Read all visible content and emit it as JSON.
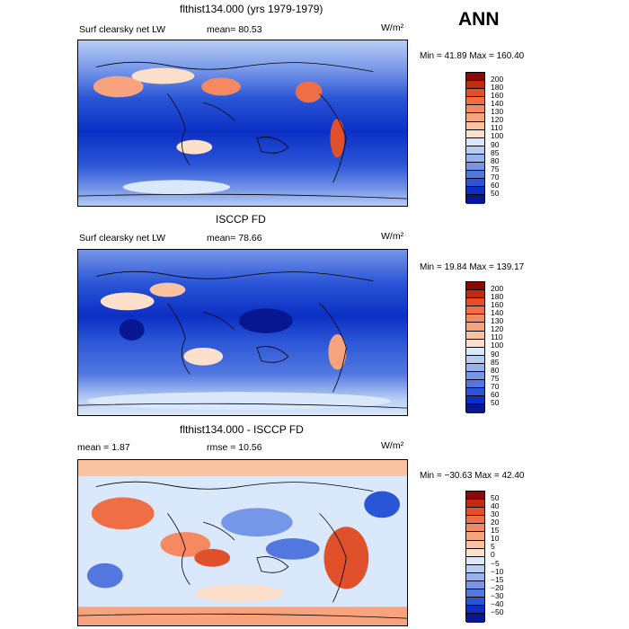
{
  "header": {
    "season": "ANN"
  },
  "panels": [
    {
      "title": "flthist134.000 (yrs 1979-1979)",
      "left_label": "Surf clearsky net LW",
      "mid_label": "mean=  80.53",
      "units": "W/m²",
      "minmax": "Min =  41.89 Max = 160.40",
      "colorbar_labels": [
        "200",
        "180",
        "160",
        "140",
        "130",
        "120",
        "110",
        "100",
        "90",
        "85",
        "80",
        "75",
        "70",
        "60",
        "50"
      ],
      "colorbar_colors": [
        "#8b0a05",
        "#c42a10",
        "#e0502a",
        "#f06e45",
        "#f58a62",
        "#f7a47e",
        "#fac29f",
        "#fde0cc",
        "#d9e8fb",
        "#b6cdf4",
        "#97b3ef",
        "#7696e8",
        "#5278e0",
        "#2a55d6",
        "#0b2fc4",
        "#061790"
      ]
    },
    {
      "title": "ISCCP FD",
      "left_label": "Surf clearsky net LW",
      "mid_label": "mean=  78.66",
      "units": "W/m²",
      "minmax": "Min =  19.84 Max = 139.17",
      "colorbar_labels": [
        "200",
        "180",
        "160",
        "140",
        "130",
        "120",
        "110",
        "100",
        "90",
        "85",
        "80",
        "75",
        "70",
        "60",
        "50"
      ],
      "colorbar_colors": [
        "#8b0a05",
        "#c42a10",
        "#e0502a",
        "#f06e45",
        "#f58a62",
        "#f7a47e",
        "#fac29f",
        "#fde0cc",
        "#d9e8fb",
        "#b6cdf4",
        "#97b3ef",
        "#7696e8",
        "#5278e0",
        "#2a55d6",
        "#0b2fc4",
        "#061790"
      ]
    },
    {
      "title": "flthist134.000 - ISCCP FD",
      "left_label": "mean =    1.87",
      "mid_label": "rmse =   10.56",
      "units": "W/m²",
      "minmax": "Min = −30.63 Max =  42.40",
      "colorbar_labels": [
        "50",
        "40",
        "30",
        "20",
        "15",
        "10",
        "5",
        "0",
        "−5",
        "−10",
        "−15",
        "−20",
        "−30",
        "−40",
        "−50"
      ],
      "colorbar_colors": [
        "#8b0a05",
        "#c42a10",
        "#e0502a",
        "#f06e45",
        "#f58a62",
        "#f7a47e",
        "#fac29f",
        "#fde0cc",
        "#d9e8fb",
        "#b6cdf4",
        "#97b3ef",
        "#7696e8",
        "#5278e0",
        "#2a55d6",
        "#0b2fc4",
        "#061790"
      ]
    }
  ]
}
